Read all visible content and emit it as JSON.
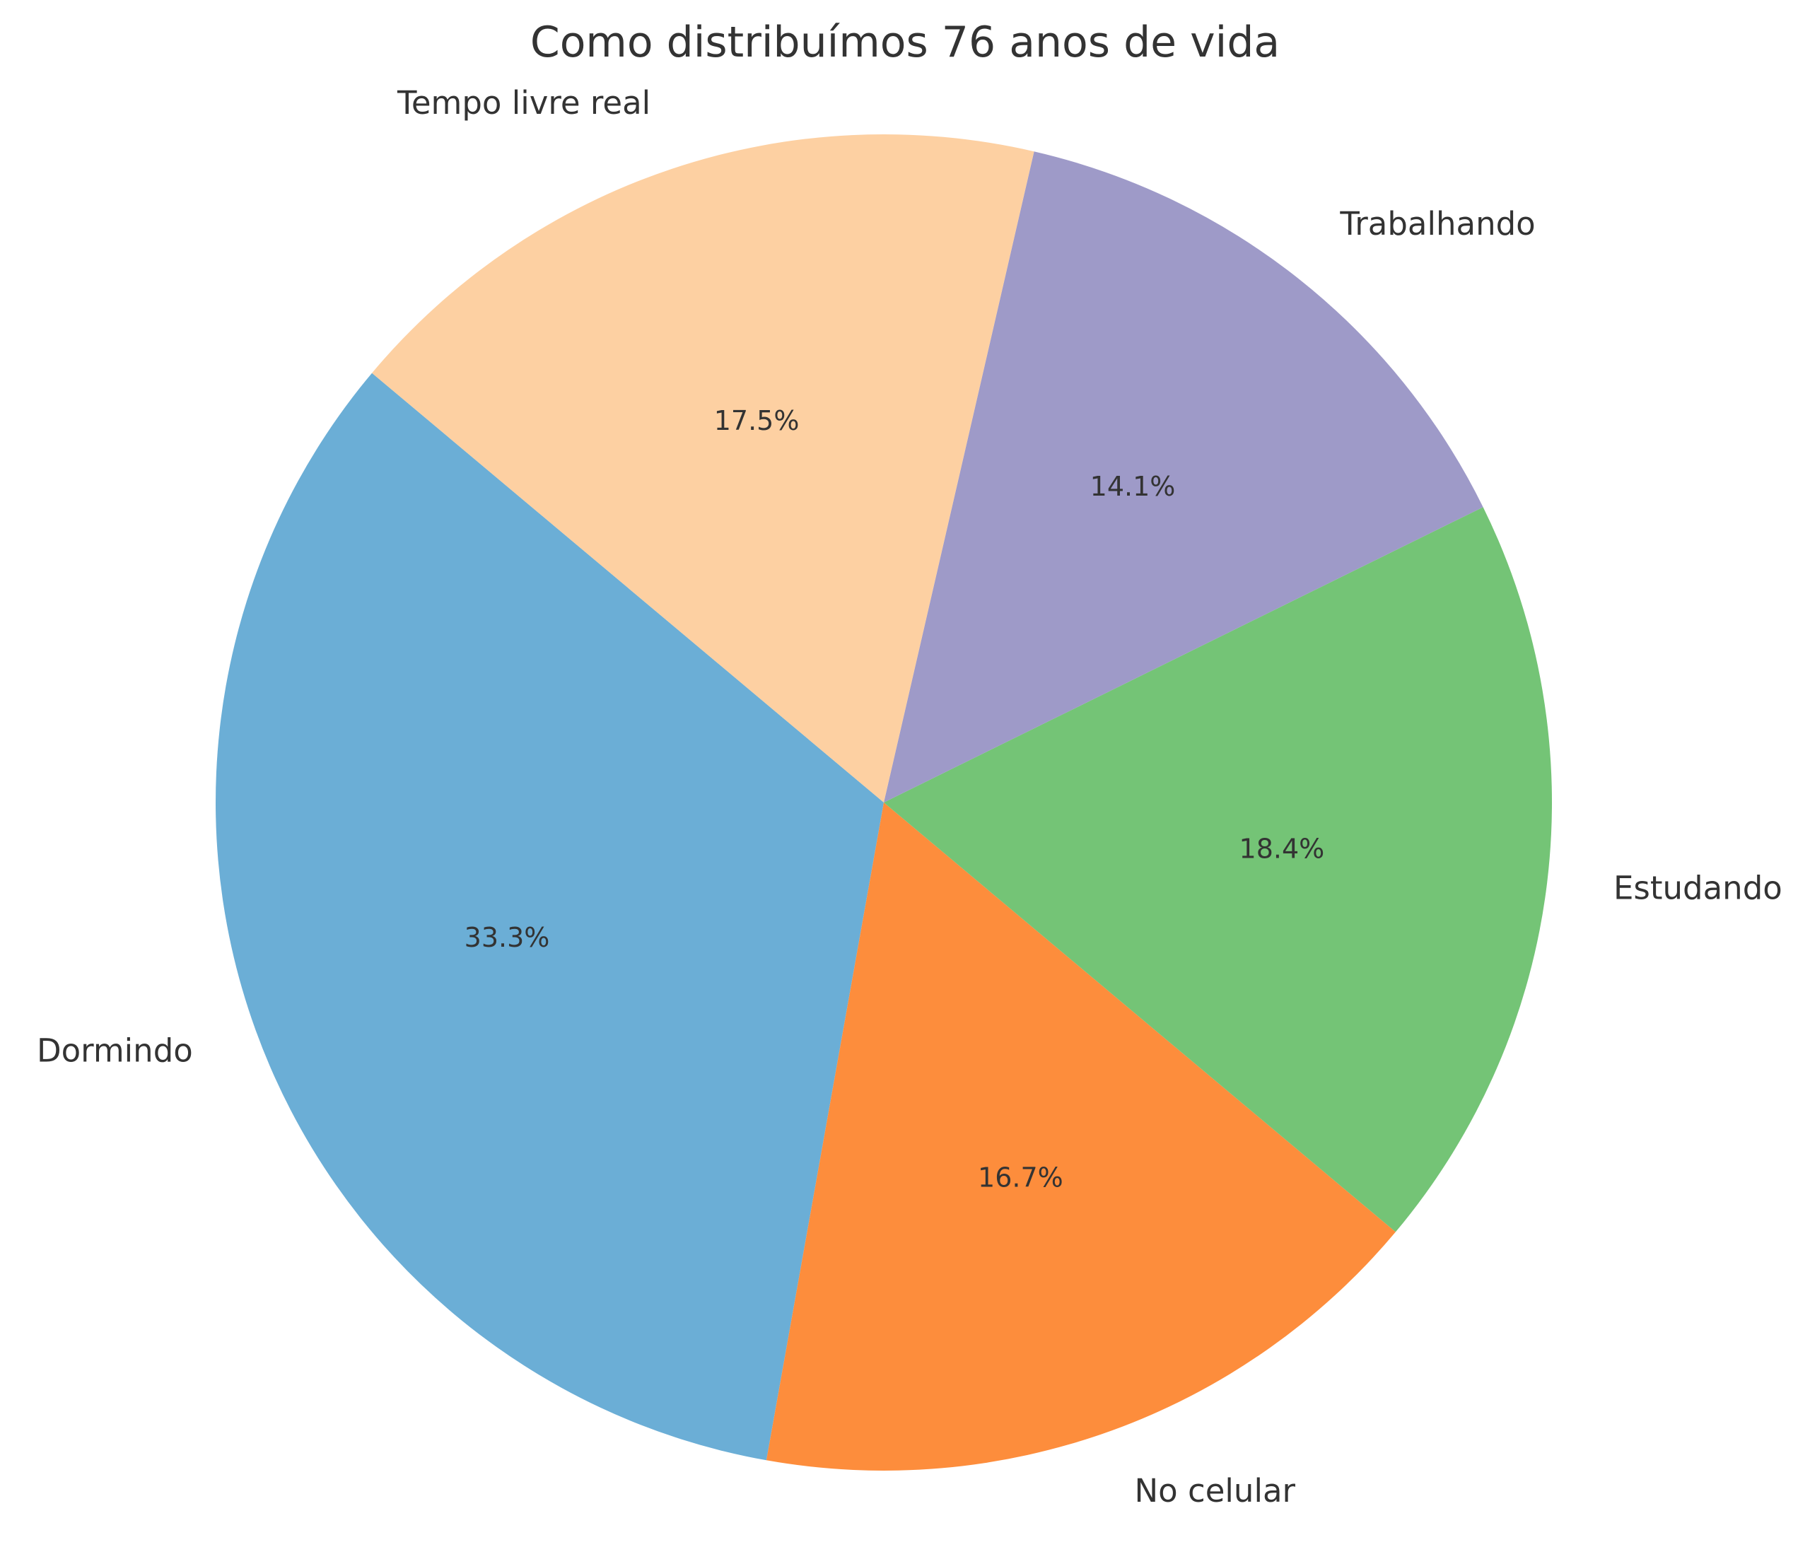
{
  "chart_data": {
    "type": "pie",
    "title": "Como distribuímos 76 anos de vida",
    "start_angle_deg": 140,
    "direction": "counterclockwise",
    "slices": [
      {
        "label": "Dormindo",
        "value": 33.3,
        "pct_label": "33.3%",
        "color": "#6baed6"
      },
      {
        "label": "No celular",
        "value": 16.7,
        "pct_label": "16.7%",
        "color": "#fd8d3c"
      },
      {
        "label": "Estudando",
        "value": 18.4,
        "pct_label": "18.4%",
        "color": "#74c476"
      },
      {
        "label": "Trabalhando",
        "value": 14.1,
        "pct_label": "14.1%",
        "color": "#9e9ac8"
      },
      {
        "label": "Tempo livre real",
        "value": 17.5,
        "pct_label": "17.5%",
        "color": "#fdd0a2"
      }
    ]
  }
}
